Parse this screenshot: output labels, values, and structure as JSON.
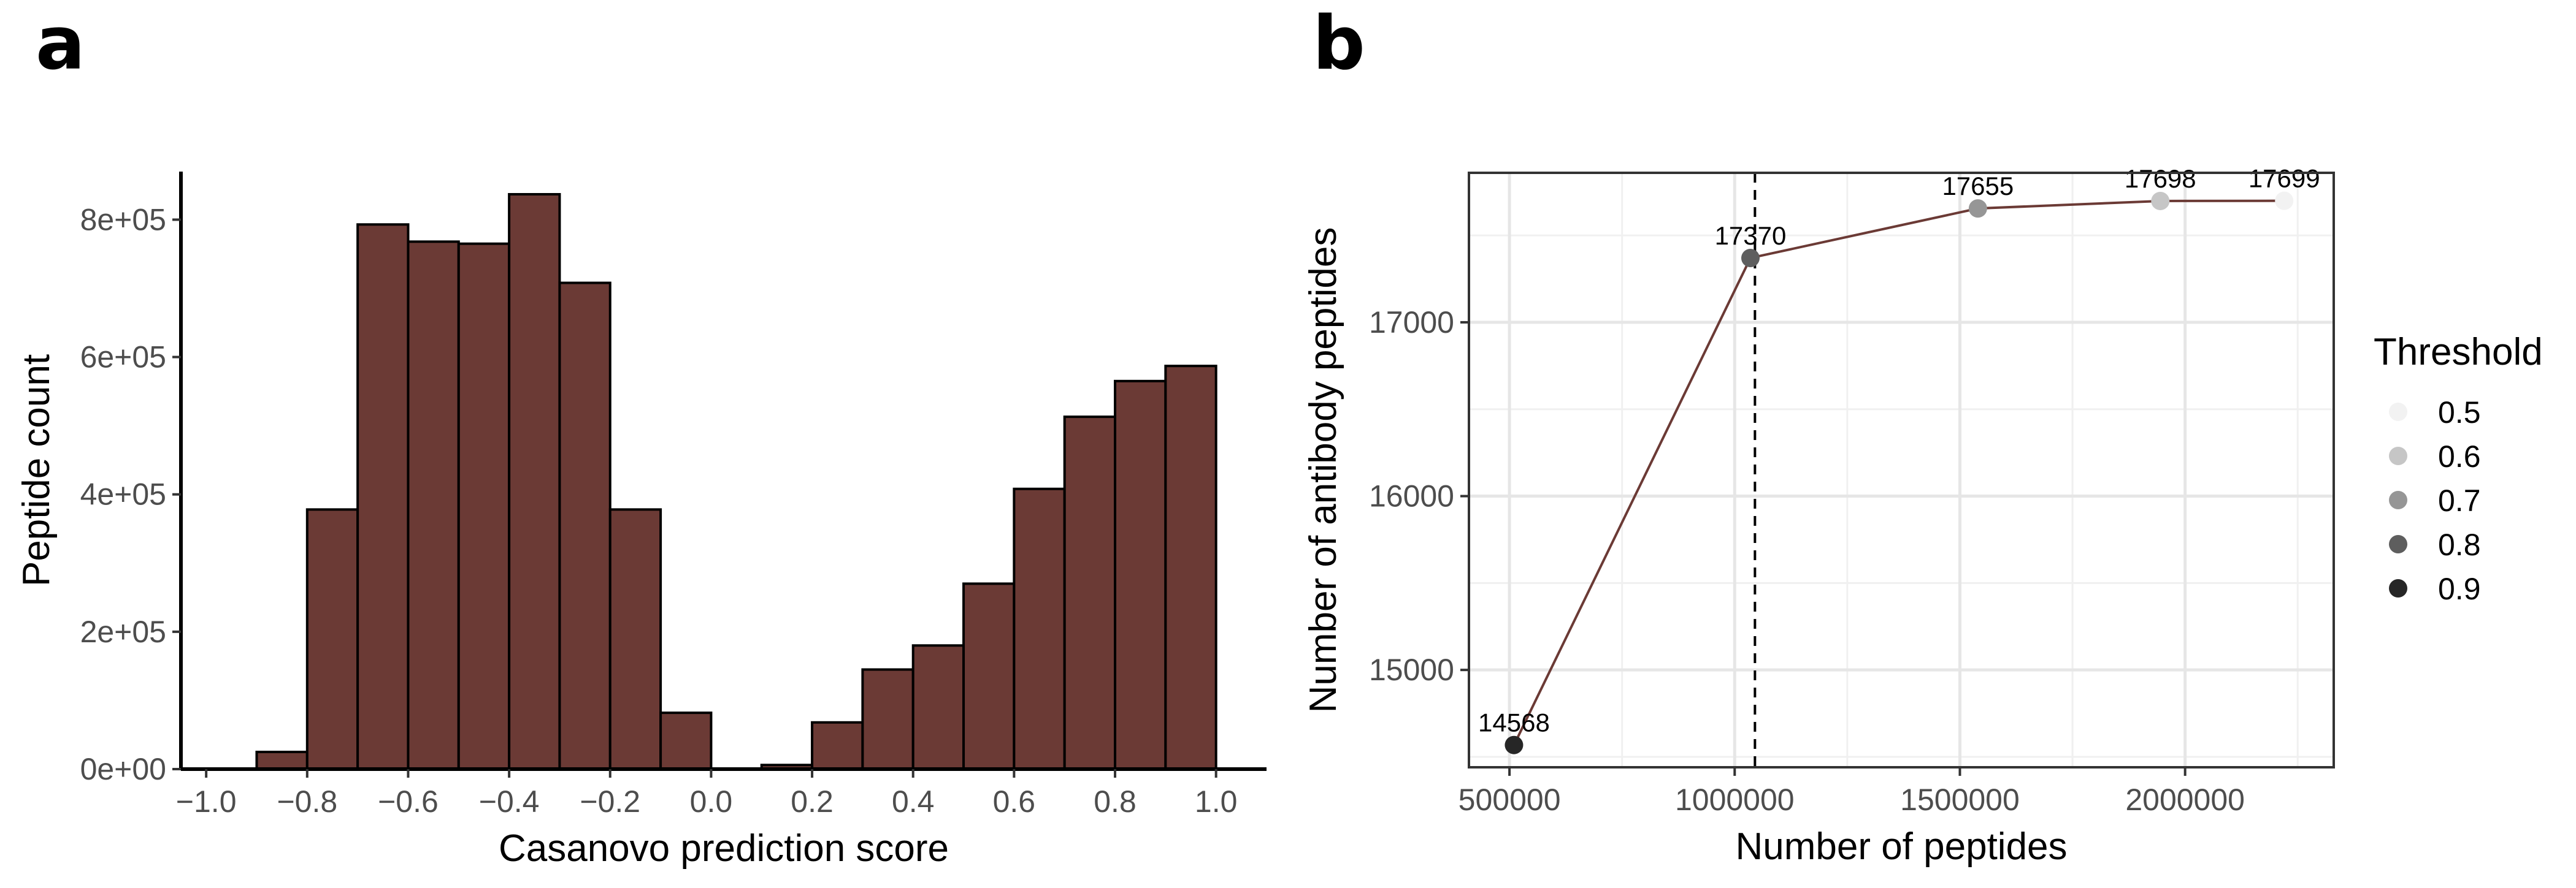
{
  "panels": {
    "a": "a",
    "b": "b"
  },
  "chart_data": [
    {
      "type": "bar",
      "panel": "a",
      "xlabel": "Casanovo prediction score",
      "ylabel": "Peptide count",
      "xlim": [
        -1.05,
        1.1
      ],
      "ylim": [
        0,
        870000
      ],
      "xticks": [
        -1.0,
        -0.8,
        -0.6,
        -0.4,
        -0.2,
        0.0,
        0.2,
        0.4,
        0.6,
        0.8,
        1.0
      ],
      "xtick_labels": [
        "−1.0",
        "−0.8",
        "−0.6",
        "−0.4",
        "−0.2",
        "0.0",
        "0.2",
        "0.4",
        "0.6",
        "0.8",
        "1.0"
      ],
      "yticks": [
        0,
        200000,
        400000,
        600000,
        800000
      ],
      "ytick_labels": [
        "0e+00",
        "2e+05",
        "4e+05",
        "6e+05",
        "8e+05"
      ],
      "bin_width": 0.1,
      "bins": [
        {
          "x0": -1.0,
          "x1": -0.9,
          "value": 0
        },
        {
          "x0": -0.9,
          "x1": -0.8,
          "value": 25000
        },
        {
          "x0": -0.8,
          "x1": -0.7,
          "value": 378000
        },
        {
          "x0": -0.7,
          "x1": -0.6,
          "value": 793000
        },
        {
          "x0": -0.6,
          "x1": -0.5,
          "value": 768000
        },
        {
          "x0": -0.5,
          "x1": -0.4,
          "value": 765000
        },
        {
          "x0": -0.4,
          "x1": -0.3,
          "value": 837000
        },
        {
          "x0": -0.3,
          "x1": -0.2,
          "value": 708000
        },
        {
          "x0": -0.2,
          "x1": -0.1,
          "value": 378000
        },
        {
          "x0": -0.1,
          "x1": 0.0,
          "value": 82000
        },
        {
          "x0": 0.0,
          "x1": 0.1,
          "value": 0
        },
        {
          "x0": 0.1,
          "x1": 0.2,
          "value": 6000
        },
        {
          "x0": 0.2,
          "x1": 0.3,
          "value": 68000
        },
        {
          "x0": 0.3,
          "x1": 0.4,
          "value": 145000
        },
        {
          "x0": 0.4,
          "x1": 0.5,
          "value": 180000
        },
        {
          "x0": 0.5,
          "x1": 0.6,
          "value": 270000
        },
        {
          "x0": 0.6,
          "x1": 0.7,
          "value": 408000
        },
        {
          "x0": 0.7,
          "x1": 0.8,
          "value": 513000
        },
        {
          "x0": 0.8,
          "x1": 0.9,
          "value": 565000
        },
        {
          "x0": 0.9,
          "x1": 1.0,
          "value": 587000
        }
      ],
      "bar_color": "#6b3a35",
      "grid": false
    },
    {
      "type": "line",
      "panel": "b",
      "xlabel": "Number of peptides",
      "ylabel": "Number of antibody peptides",
      "xlim": [
        410000,
        2330000
      ],
      "ylim": [
        14440,
        17860
      ],
      "xticks": [
        500000,
        1000000,
        1500000,
        2000000
      ],
      "xtick_labels": [
        "500000",
        "1000000",
        "1500000",
        "2000000"
      ],
      "yticks": [
        15000,
        16000,
        17000
      ],
      "ytick_labels": [
        "15000",
        "16000",
        "17000"
      ],
      "points": [
        {
          "x": 510000,
          "y": 14568,
          "label": "14568",
          "threshold": 0.9
        },
        {
          "x": 1035000,
          "y": 17370,
          "label": "17370",
          "threshold": 0.8
        },
        {
          "x": 1540000,
          "y": 17655,
          "label": "17655",
          "threshold": 0.7
        },
        {
          "x": 1945000,
          "y": 17698,
          "label": "17698",
          "threshold": 0.6
        },
        {
          "x": 2220000,
          "y": 17699,
          "label": "17699",
          "threshold": 0.5
        }
      ],
      "vline_x": 1045000,
      "line_color": "#6b3a35",
      "grid": true,
      "legend": {
        "title": "Threshold",
        "position": "right",
        "items": [
          {
            "label": "0.5",
            "color": "#f2f2f2"
          },
          {
            "label": "0.6",
            "color": "#c6c6c6"
          },
          {
            "label": "0.7",
            "color": "#969696"
          },
          {
            "label": "0.8",
            "color": "#5e5e5e"
          },
          {
            "label": "0.9",
            "color": "#262626"
          }
        ]
      }
    }
  ]
}
